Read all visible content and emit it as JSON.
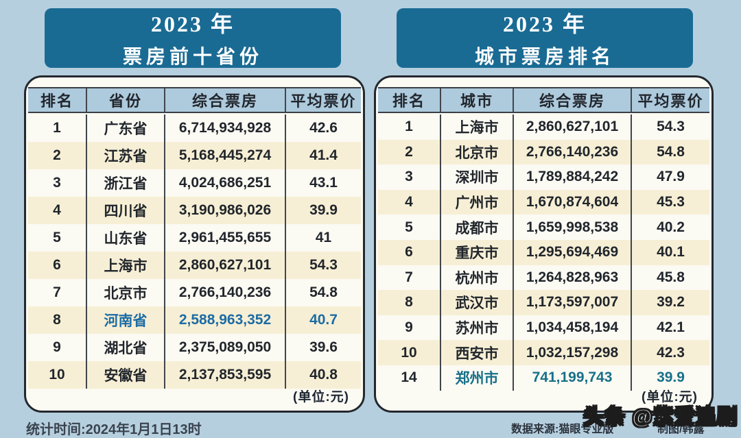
{
  "page": {
    "watermark": "头条 @紫爱追剧",
    "stats_time": "统计时间:2024年1月1日13时",
    "data_source": "数据来源:猫眼专业版",
    "credit": "制图/韩露"
  },
  "colors": {
    "page_bg": "#b6cfdf",
    "banner_bg": "#1a6b94",
    "header_row_bg": "#aecadd",
    "alt_row_bg": "#f7efd5",
    "highlight_province": "#1c6ca4",
    "highlight_city": "#17708a"
  },
  "chart_data": [
    {
      "type": "table",
      "title_line1": "2023 年",
      "title_line2": "票房前十省份",
      "columns": [
        "排名",
        "省份",
        "综合票房",
        "平均票价"
      ],
      "unit_note": "(单位:元)",
      "rows": [
        {
          "rank": "1",
          "name": "广东省",
          "gross": "6,714,934,928",
          "avg": "42.6",
          "highlight": false
        },
        {
          "rank": "2",
          "name": "江苏省",
          "gross": "5,168,445,274",
          "avg": "41.4",
          "highlight": false
        },
        {
          "rank": "3",
          "name": "浙江省",
          "gross": "4,024,686,251",
          "avg": "43.1",
          "highlight": false
        },
        {
          "rank": "4",
          "name": "四川省",
          "gross": "3,190,986,026",
          "avg": "39.9",
          "highlight": false
        },
        {
          "rank": "5",
          "name": "山东省",
          "gross": "2,961,455,655",
          "avg": "41",
          "highlight": false
        },
        {
          "rank": "6",
          "name": "上海市",
          "gross": "2,860,627,101",
          "avg": "54.3",
          "highlight": false
        },
        {
          "rank": "7",
          "name": "北京市",
          "gross": "2,766,140,236",
          "avg": "54.8",
          "highlight": false
        },
        {
          "rank": "8",
          "name": "河南省",
          "gross": "2,588,963,352",
          "avg": "40.7",
          "highlight": true
        },
        {
          "rank": "9",
          "name": "湖北省",
          "gross": "2,375,089,050",
          "avg": "39.6",
          "highlight": false
        },
        {
          "rank": "10",
          "name": "安徽省",
          "gross": "2,137,853,595",
          "avg": "40.8",
          "highlight": false
        }
      ]
    },
    {
      "type": "table",
      "title_line1": "2023 年",
      "title_line2": "城市票房排名",
      "columns": [
        "排名",
        "城市",
        "综合票房",
        "平均票价"
      ],
      "unit_note": "(单位:元)",
      "rows": [
        {
          "rank": "1",
          "name": "上海市",
          "gross": "2,860,627,101",
          "avg": "54.3",
          "highlight": false
        },
        {
          "rank": "2",
          "name": "北京市",
          "gross": "2,766,140,236",
          "avg": "54.8",
          "highlight": false
        },
        {
          "rank": "3",
          "name": "深圳市",
          "gross": "1,789,884,242",
          "avg": "47.9",
          "highlight": false
        },
        {
          "rank": "4",
          "name": "广州市",
          "gross": "1,670,874,604",
          "avg": "45.3",
          "highlight": false
        },
        {
          "rank": "5",
          "name": "成都市",
          "gross": "1,659,998,538",
          "avg": "40.2",
          "highlight": false
        },
        {
          "rank": "6",
          "name": "重庆市",
          "gross": "1,295,694,469",
          "avg": "40.1",
          "highlight": false
        },
        {
          "rank": "7",
          "name": "杭州市",
          "gross": "1,264,828,963",
          "avg": "45.8",
          "highlight": false
        },
        {
          "rank": "8",
          "name": "武汉市",
          "gross": "1,173,597,007",
          "avg": "39.2",
          "highlight": false
        },
        {
          "rank": "9",
          "name": "苏州市",
          "gross": "1,034,458,194",
          "avg": "42.1",
          "highlight": false
        },
        {
          "rank": "10",
          "name": "西安市",
          "gross": "1,032,157,298",
          "avg": "42.3",
          "highlight": false
        },
        {
          "rank": "14",
          "name": "郑州市",
          "gross": "741,199,743",
          "avg": "39.9",
          "highlight": true
        }
      ]
    }
  ]
}
